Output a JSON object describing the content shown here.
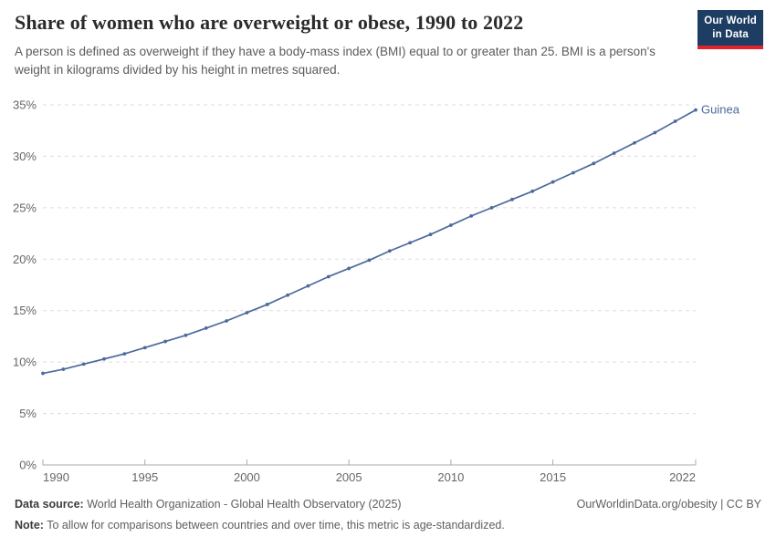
{
  "header": {
    "title": "Share of women who are overweight or obese, 1990 to 2022",
    "subtitle": "A person is defined as overweight if they have a body-mass index (BMI) equal to or greater than 25. BMI is a person's weight in kilograms divided by his height in metres squared.",
    "logo": {
      "line1": "Our World",
      "line2": "in Data",
      "bg_color": "#1d3d63",
      "stripe_color": "#e0232d"
    }
  },
  "chart_data": {
    "type": "line",
    "title": "Share of women who are overweight or obese, 1990 to 2022",
    "x": [
      1990,
      1991,
      1992,
      1993,
      1994,
      1995,
      1996,
      1997,
      1998,
      1999,
      2000,
      2001,
      2002,
      2003,
      2004,
      2005,
      2006,
      2007,
      2008,
      2009,
      2010,
      2011,
      2012,
      2013,
      2014,
      2015,
      2016,
      2017,
      2018,
      2019,
      2020,
      2021,
      2022
    ],
    "series": [
      {
        "name": "Guinea",
        "values": [
          8.9,
          9.3,
          9.8,
          10.3,
          10.8,
          11.4,
          12.0,
          12.6,
          13.3,
          14.0,
          14.8,
          15.6,
          16.5,
          17.4,
          18.3,
          19.1,
          19.9,
          20.8,
          21.6,
          22.4,
          23.3,
          24.2,
          25.0,
          25.8,
          26.6,
          27.5,
          28.4,
          29.3,
          30.3,
          31.3,
          32.3,
          33.4,
          34.5
        ],
        "color": "#4C6A9C"
      }
    ],
    "unit": "%",
    "ylim": [
      0,
      35
    ],
    "yticks": [
      0,
      5,
      10,
      15,
      20,
      25,
      30,
      35
    ],
    "xticks": [
      1990,
      1995,
      2000,
      2005,
      2010,
      2015,
      2022
    ],
    "grid": true,
    "legend_position": "end-of-line-label",
    "grid_color": "#dcdcdc",
    "axis_color": "#ababab",
    "tick_label_color": "#666666"
  },
  "footer": {
    "data_source_label": "Data source:",
    "data_source_text": " World Health Organization - Global Health Observatory (2025)",
    "right_text": "OurWorldinData.org/obesity | CC BY",
    "note_label": "Note:",
    "note_text": " To allow for comparisons between countries and over time, this metric is age-standardized."
  }
}
